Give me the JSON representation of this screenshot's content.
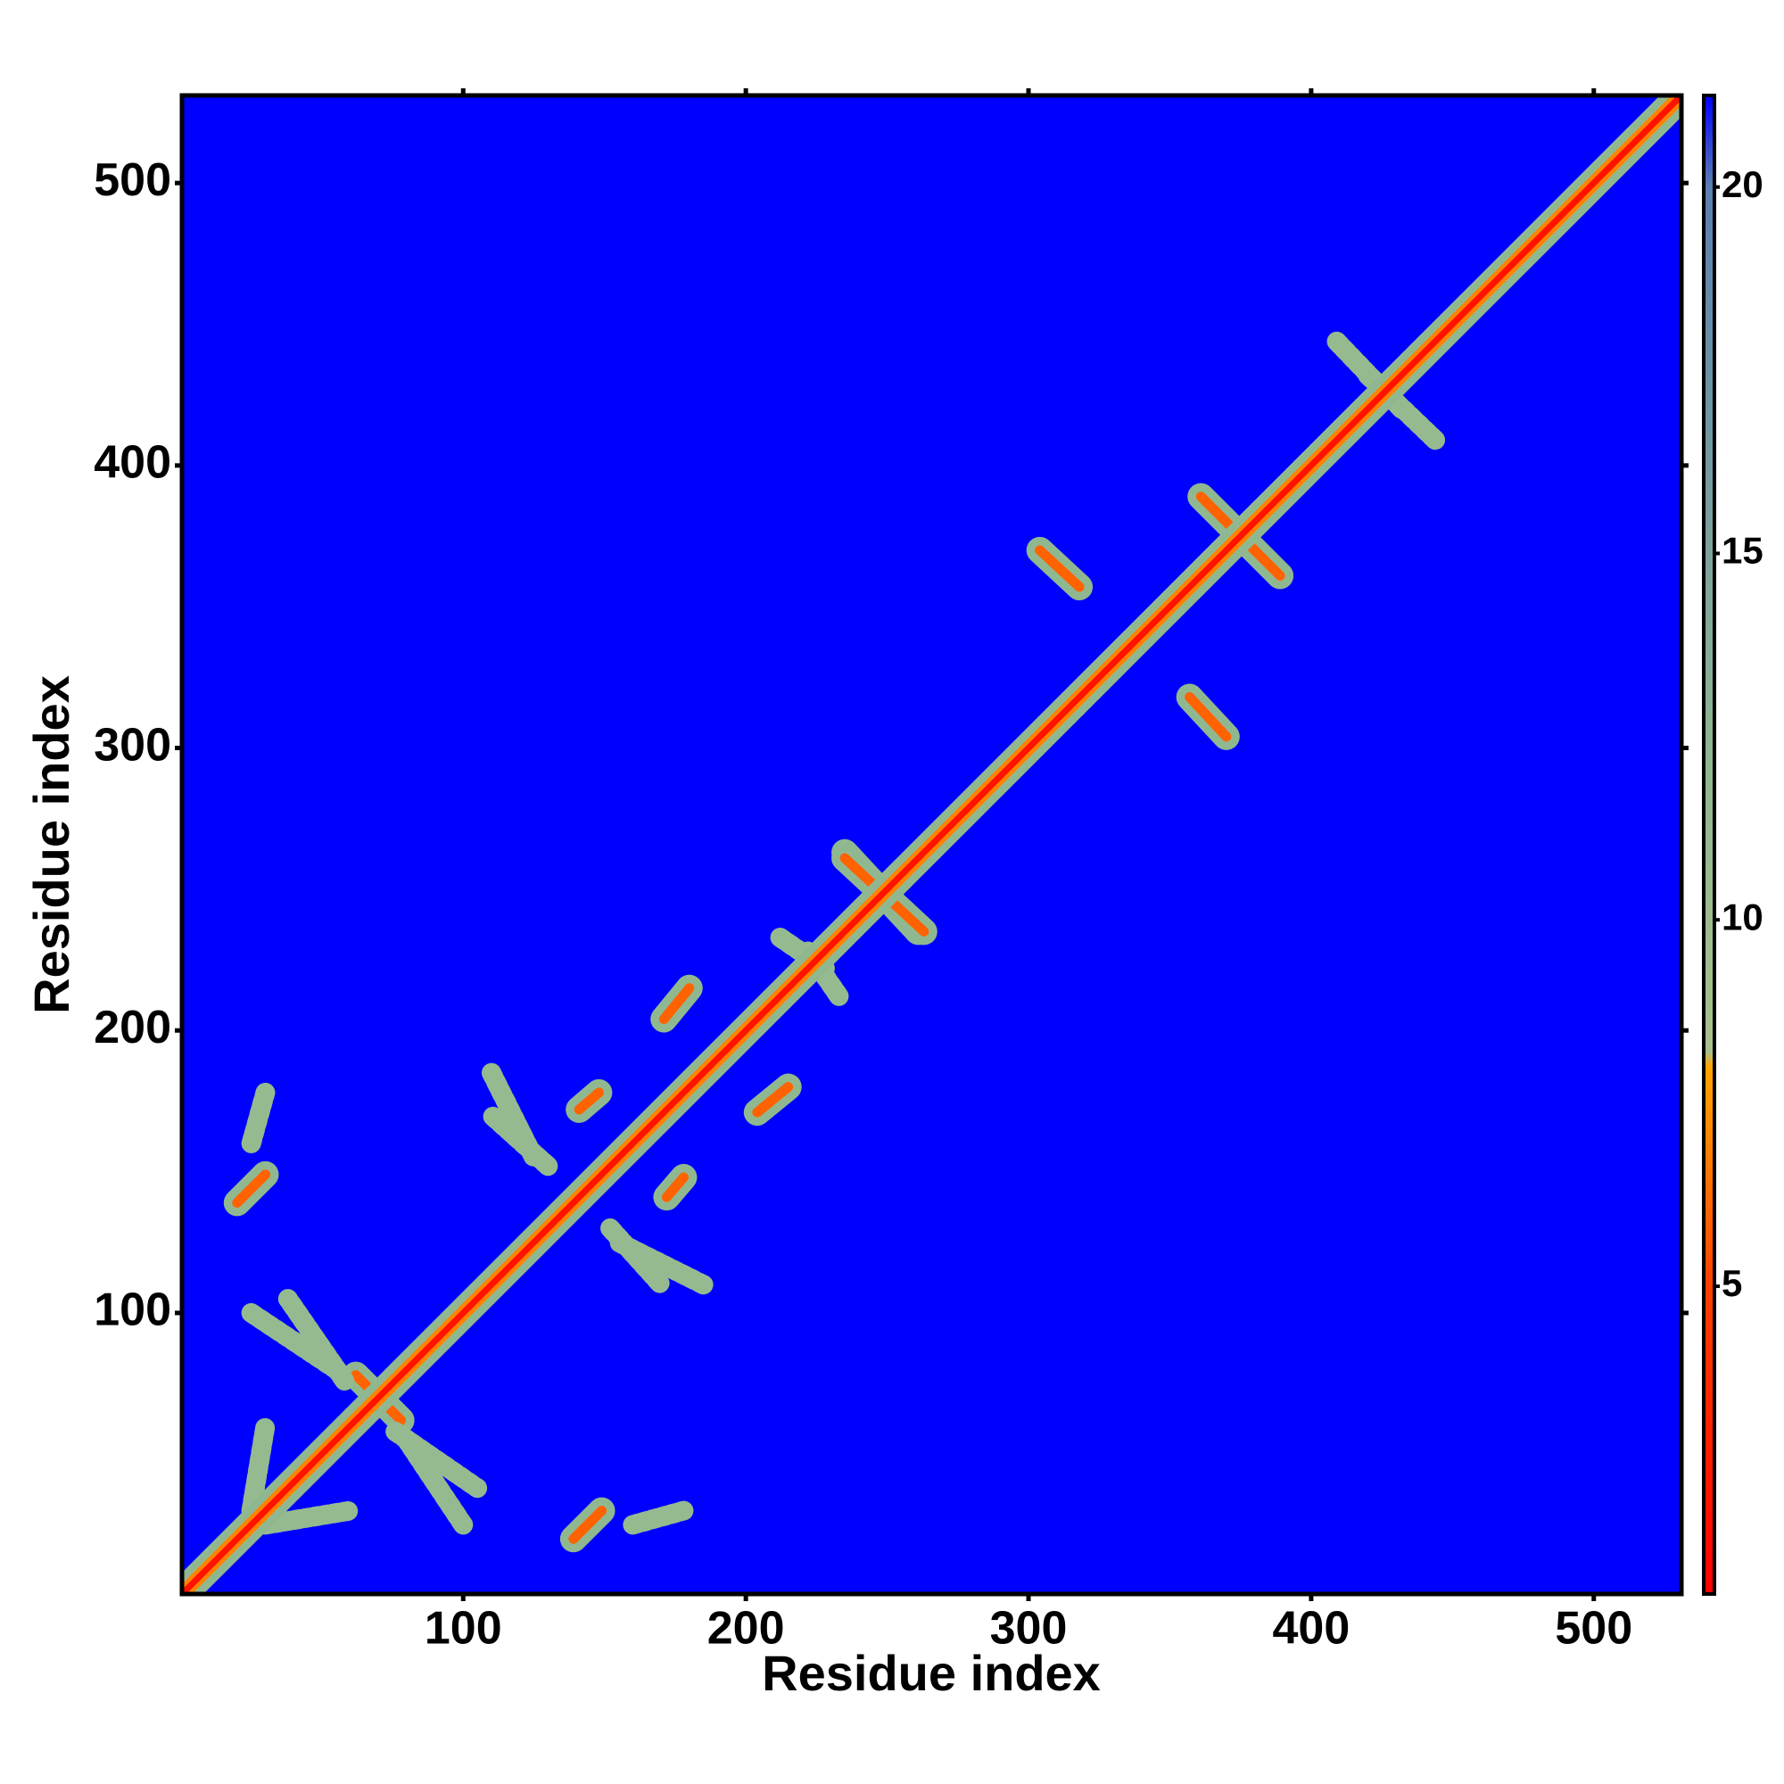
{
  "chart_data": {
    "type": "contact_map",
    "xlabel": "Residue index",
    "ylabel": "Residue index",
    "xlim": [
      0.5,
      531
    ],
    "ylim": [
      0.5,
      531
    ],
    "xticks": [
      100,
      200,
      300,
      400,
      500
    ],
    "yticks": [
      100,
      200,
      300,
      400,
      500
    ],
    "background_color": "#0000ff",
    "symmetric": true,
    "diagonal": {
      "x": [
        1,
        531
      ],
      "y": [
        1,
        531
      ],
      "value": 2
    },
    "segments": [
      {
        "x": [
          20,
          30
        ],
        "y": [
          139,
          149
        ],
        "value": 6
      },
      {
        "x": [
          62,
          78
        ],
        "y": [
          78,
          62
        ],
        "value": 6
      },
      {
        "x": [
          171,
          180
        ],
        "y": [
          204,
          215
        ],
        "value": 6
      },
      {
        "x": [
          141,
          148
        ],
        "y": [
          172,
          178
        ],
        "value": 6
      },
      {
        "x": [
          235,
          261
        ],
        "y": [
          263,
          235
        ],
        "value": 6
      },
      {
        "x": [
          304,
          318
        ],
        "y": [
          370,
          357
        ],
        "value": 6
      },
      {
        "x": [
          361,
          389
        ],
        "y": [
          389,
          361
        ],
        "value": 6
      },
      {
        "x": [
          110,
          125
        ],
        "y": [
          185,
          155
        ],
        "value": 11
      },
      {
        "x": [
          152,
          170
        ],
        "y": [
          130,
          110
        ],
        "value": 11
      },
      {
        "x": [
          25,
          55
        ],
        "y": [
          100,
          80
        ],
        "value": 11
      },
      {
        "x": [
          76,
          105
        ],
        "y": [
          58,
          38
        ],
        "value": 11
      },
      {
        "x": [
          420,
          445
        ],
        "y": [
          432,
          408
        ],
        "value": 11
      },
      {
        "x": [
          222,
          233
        ],
        "y": [
          228,
          212
        ],
        "value": 11
      },
      {
        "x": [
          30,
          60
        ],
        "y": [
          25,
          30
        ],
        "value": 11
      },
      {
        "x": [
          160,
          178
        ],
        "y": [
          25,
          30
        ],
        "value": 11
      }
    ],
    "colorbar": {
      "lim": [
        0.8,
        21.25
      ],
      "ticks": [
        5,
        10,
        15,
        20
      ],
      "colorscale": [
        [
          0.8,
          "#ff0000"
        ],
        [
          5,
          "#ff4000"
        ],
        [
          8,
          "#ffa500"
        ],
        [
          8.2,
          "#a8c08c"
        ],
        [
          12,
          "#90b890"
        ],
        [
          20,
          "#5b7fb0"
        ],
        [
          21.25,
          "#0000ff"
        ]
      ]
    }
  }
}
